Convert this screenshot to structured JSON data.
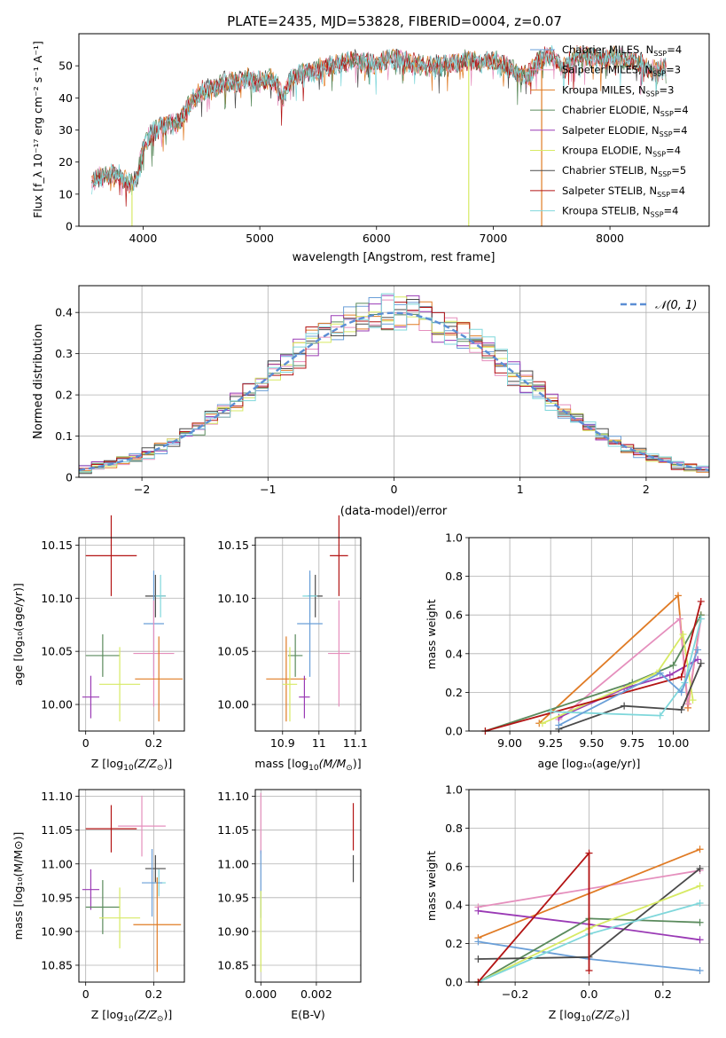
{
  "figure": {
    "title": "PLATE=2435, MJD=53828, FIBERID=0004, z=0.07"
  },
  "colors": {
    "Chabrier MILES": "#6a9fd8",
    "Salpeter MILES": "#e58fbd",
    "Kroupa MILES": "#e07b25",
    "Chabrier ELODIE": "#5a8a5c",
    "Salpeter ELODIE": "#9a3ab5",
    "Kroupa ELODIE": "#d7ea64",
    "Chabrier STELIB": "#4a4a4a",
    "Salpeter STELIB": "#b31414",
    "Kroupa STELIB": "#7fd7db"
  },
  "chart_data": [
    {
      "id": "spectrum",
      "type": "line",
      "xlabel": "wavelength [Angstrom, rest frame]",
      "ylabel": "Flux [f_λ 10⁻¹⁷ erg cm⁻² s⁻¹ A⁻¹]",
      "xlim": [
        3450,
        8850
      ],
      "ylim": [
        0,
        60
      ],
      "xticks": [
        4000,
        5000,
        6000,
        7000,
        8000
      ],
      "yticks": [
        0,
        10,
        20,
        30,
        40,
        50
      ],
      "legend_position": "top-right",
      "legend": [
        {
          "name": "Chabrier MILES",
          "label_main": "Chabrier MILES, N",
          "label_sub": "SSP",
          "label_tail": "=4"
        },
        {
          "name": "Salpeter MILES",
          "label_main": "Salpeter MILES, N",
          "label_sub": "SSP",
          "label_tail": "=3"
        },
        {
          "name": "Kroupa MILES",
          "label_main": "Kroupa MILES, N",
          "label_sub": "SSP",
          "label_tail": "=3"
        },
        {
          "name": "Chabrier ELODIE",
          "label_main": "Chabrier ELODIE, N",
          "label_sub": "SSP",
          "label_tail": "=4"
        },
        {
          "name": "Salpeter ELODIE",
          "label_main": "Salpeter ELODIE, N",
          "label_sub": "SSP",
          "label_tail": "=4"
        },
        {
          "name": "Kroupa ELODIE",
          "label_main": "Kroupa ELODIE, N",
          "label_sub": "SSP",
          "label_tail": "=4"
        },
        {
          "name": "Chabrier STELIB",
          "label_main": "Chabrier STELIB, N",
          "label_sub": "SSP",
          "label_tail": "=5"
        },
        {
          "name": "Salpeter STELIB",
          "label_main": "Salpeter STELIB, N",
          "label_sub": "SSP",
          "label_tail": "=4"
        },
        {
          "name": "Kroupa STELIB",
          "label_main": "Kroupa STELIB, N",
          "label_sub": "SSP",
          "label_tail": "=4"
        }
      ],
      "continuum": [
        [
          3560,
          13
        ],
        [
          3600,
          15
        ],
        [
          3700,
          16
        ],
        [
          3800,
          16
        ],
        [
          3850,
          14
        ],
        [
          3900,
          13
        ],
        [
          3950,
          15
        ],
        [
          4000,
          24
        ],
        [
          4050,
          28
        ],
        [
          4100,
          30
        ],
        [
          4200,
          32
        ],
        [
          4300,
          32
        ],
        [
          4400,
          38
        ],
        [
          4500,
          42
        ],
        [
          4600,
          43
        ],
        [
          4700,
          45
        ],
        [
          4800,
          45
        ],
        [
          4900,
          46
        ],
        [
          5000,
          45
        ],
        [
          5100,
          46
        ],
        [
          5150,
          44
        ],
        [
          5200,
          40
        ],
        [
          5250,
          45
        ],
        [
          5300,
          47
        ],
        [
          5400,
          48
        ],
        [
          5500,
          49
        ],
        [
          5600,
          50
        ],
        [
          5700,
          51
        ],
        [
          5800,
          52
        ],
        [
          5900,
          51
        ],
        [
          6000,
          50
        ],
        [
          6100,
          52
        ],
        [
          6200,
          52
        ],
        [
          6300,
          51
        ],
        [
          6400,
          50
        ],
        [
          6500,
          50
        ],
        [
          6600,
          50
        ],
        [
          6700,
          51
        ],
        [
          6800,
          52
        ],
        [
          6900,
          51
        ],
        [
          7000,
          52
        ],
        [
          7100,
          50
        ],
        [
          7200,
          48
        ],
        [
          7300,
          47
        ],
        [
          7400,
          52
        ],
        [
          7500,
          53
        ],
        [
          7600,
          49
        ],
        [
          7700,
          53
        ],
        [
          7800,
          53
        ],
        [
          7900,
          52
        ],
        [
          8000,
          53
        ],
        [
          8100,
          52
        ],
        [
          8200,
          51
        ],
        [
          8300,
          50
        ],
        [
          8400,
          48
        ],
        [
          8480,
          50
        ]
      ],
      "spikes": [
        {
          "name": "Kroupa ELODIE",
          "x": 3905,
          "y": 0
        },
        {
          "name": "Kroupa ELODIE",
          "x": 6790,
          "y": 0
        },
        {
          "name": "Kroupa MILES",
          "x": 7415,
          "y": 0
        }
      ]
    },
    {
      "id": "residual-histogram",
      "type": "line",
      "xlabel": "(data-model)/error",
      "ylabel": "Normed distribution",
      "xlim": [
        -2.5,
        2.5
      ],
      "ylim": [
        0,
        0.465
      ],
      "xticks": [
        -2,
        -1,
        0,
        1,
        2
      ],
      "yticks": [
        0.0,
        0.1,
        0.2,
        0.3,
        0.4
      ],
      "grid": true,
      "bins": {
        "start": -2.5,
        "width": 0.1,
        "count": 50
      },
      "reference": {
        "name": "𝒩(0, 1)",
        "style": "dashed",
        "color": "#5b8ed4"
      },
      "legend_position": "top-right"
    },
    {
      "id": "age-vs-Z",
      "type": "scatter",
      "xlabel_main": "Z [log",
      "xlabel_sub": "10",
      "xlabel_tail": "(Z/Z",
      "xlabel_sym": "⊙",
      "xlabel_end": ")]",
      "ylabel": "age  [log₁₀(age/yr)]",
      "xlim": [
        -0.02,
        0.29
      ],
      "ylim": [
        9.975,
        10.157
      ],
      "xticks": [
        0.0,
        0.2
      ],
      "yticks": [
        10.0,
        10.05,
        10.1,
        10.15
      ],
      "grid": true,
      "points": [
        {
          "name": "Salpeter STELIB",
          "x": 0.075,
          "xerr": 0.075,
          "y": 10.14,
          "yerr": 0.038
        },
        {
          "name": "Chabrier STELIB",
          "x": 0.205,
          "xerr": 0.03,
          "y": 10.102,
          "yerr": 0.02
        },
        {
          "name": "Kroupa STELIB",
          "x": 0.22,
          "xerr": 0.015,
          "y": 10.102,
          "yerr": 0.02
        },
        {
          "name": "Chabrier MILES",
          "x": 0.2,
          "xerr": 0.03,
          "y": 10.076,
          "yerr": 0.05
        },
        {
          "name": "Salpeter MILES",
          "x": 0.2,
          "xerr": 0.06,
          "y": 10.048,
          "yerr": 0.05
        },
        {
          "name": "Chabrier ELODIE",
          "x": 0.05,
          "xerr": 0.05,
          "y": 10.046,
          "yerr": 0.02
        },
        {
          "name": "Kroupa MILES",
          "x": 0.215,
          "xerr": 0.07,
          "y": 10.024,
          "yerr": 0.04
        },
        {
          "name": "Kroupa ELODIE",
          "x": 0.1,
          "xerr": 0.06,
          "y": 10.019,
          "yerr": 0.035
        },
        {
          "name": "Salpeter ELODIE",
          "x": 0.015,
          "xerr": 0.025,
          "y": 10.007,
          "yerr": 0.02
        }
      ]
    },
    {
      "id": "age-vs-mass",
      "type": "scatter",
      "xlabel_main": "mass [log",
      "xlabel_sub": "10",
      "xlabel_tail": "(M/M",
      "xlabel_sym": "⊙",
      "xlabel_end": ")]",
      "xlim": [
        10.825,
        11.115
      ],
      "ylim": [
        9.975,
        10.157
      ],
      "xticks": [
        10.9,
        11.0,
        11.1
      ],
      "yticks": [
        10.0,
        10.05,
        10.1,
        10.15
      ],
      "grid": true,
      "points": [
        {
          "name": "Salpeter STELIB",
          "x": 11.055,
          "xerr": 0.025,
          "y": 10.14,
          "yerr": 0.038
        },
        {
          "name": "Chabrier STELIB",
          "x": 10.99,
          "xerr": 0.02,
          "y": 10.102,
          "yerr": 0.02
        },
        {
          "name": "Kroupa STELIB",
          "x": 10.975,
          "xerr": 0.02,
          "y": 10.102,
          "yerr": 0.02
        },
        {
          "name": "Chabrier MILES",
          "x": 10.975,
          "xerr": 0.035,
          "y": 10.076,
          "yerr": 0.05
        },
        {
          "name": "Salpeter MILES",
          "x": 11.055,
          "xerr": 0.03,
          "y": 10.048,
          "yerr": 0.05
        },
        {
          "name": "Chabrier ELODIE",
          "x": 10.935,
          "xerr": 0.02,
          "y": 10.046,
          "yerr": 0.02
        },
        {
          "name": "Kroupa MILES",
          "x": 10.91,
          "xerr": 0.055,
          "y": 10.024,
          "yerr": 0.04
        },
        {
          "name": "Kroupa ELODIE",
          "x": 10.92,
          "xerr": 0.02,
          "y": 10.019,
          "yerr": 0.035
        },
        {
          "name": "Salpeter ELODIE",
          "x": 10.96,
          "xerr": 0.015,
          "y": 10.007,
          "yerr": 0.02
        }
      ]
    },
    {
      "id": "weight-vs-age",
      "type": "line",
      "xlabel": "age  [log₁₀(age/yr)]",
      "ylabel": "mass weight",
      "xlim": [
        8.75,
        10.22
      ],
      "ylim": [
        0,
        1
      ],
      "xticks": [
        9.0,
        9.25,
        9.5,
        9.75,
        10.0
      ],
      "xticklabels": [
        "9.00",
        "9.25",
        "9.50",
        "9.75",
        "10.00"
      ],
      "yticks": [
        0.0,
        0.2,
        0.4,
        0.6,
        0.8,
        1.0
      ],
      "grid": true,
      "series": [
        {
          "name": "Kroupa MILES",
          "points": [
            [
              9.18,
              0.04
            ],
            [
              10.03,
              0.7
            ],
            [
              10.09,
              0.12
            ],
            [
              10.17,
              0.6
            ]
          ]
        },
        {
          "name": "Salpeter MILES",
          "points": [
            [
              9.3,
              0.06
            ],
            [
              10.04,
              0.58
            ],
            [
              10.09,
              0.14
            ],
            [
              10.17,
              0.58
            ]
          ]
        },
        {
          "name": "Chabrier ELODIE",
          "points": [
            [
              8.85,
              0.0
            ],
            [
              9.75,
              0.25
            ],
            [
              10.0,
              0.34
            ],
            [
              10.17,
              0.6
            ]
          ]
        },
        {
          "name": "Salpeter ELODIE",
          "points": [
            [
              9.3,
              0.07
            ],
            [
              9.7,
              0.22
            ],
            [
              9.98,
              0.29
            ],
            [
              10.15,
              0.37
            ]
          ]
        },
        {
          "name": "Kroupa ELODIE",
          "points": [
            [
              9.2,
              0.04
            ],
            [
              9.9,
              0.3
            ],
            [
              10.06,
              0.5
            ],
            [
              10.12,
              0.16
            ]
          ]
        },
        {
          "name": "Chabrier STELIB",
          "points": [
            [
              9.3,
              0.01
            ],
            [
              9.7,
              0.13
            ],
            [
              10.05,
              0.11
            ],
            [
              10.17,
              0.35
            ]
          ]
        },
        {
          "name": "Salpeter STELIB",
          "points": [
            [
              8.85,
              0.0
            ],
            [
              10.05,
              0.28
            ],
            [
              10.17,
              0.67
            ]
          ]
        },
        {
          "name": "Kroupa STELIB",
          "points": [
            [
              9.25,
              0.1
            ],
            [
              9.92,
              0.08
            ],
            [
              10.07,
              0.25
            ],
            [
              10.17,
              0.58
            ]
          ]
        },
        {
          "name": "Chabrier MILES",
          "points": [
            [
              9.3,
              0.03
            ],
            [
              9.92,
              0.3
            ],
            [
              10.05,
              0.2
            ],
            [
              10.15,
              0.42
            ]
          ]
        }
      ]
    },
    {
      "id": "mass-vs-Z",
      "type": "scatter",
      "xlabel_main": "Z [log",
      "xlabel_sub": "10",
      "xlabel_tail": "(Z/Z",
      "xlabel_sym": "⊙",
      "xlabel_end": ")]",
      "ylabel": "mass [log₁₀(M/M⊙)]",
      "xlim": [
        -0.02,
        0.29
      ],
      "ylim": [
        10.825,
        11.11
      ],
      "xticks": [
        0.0,
        0.2
      ],
      "yticks": [
        10.85,
        10.9,
        10.95,
        11.0,
        11.05,
        11.1
      ],
      "grid": true,
      "points": [
        {
          "name": "Salpeter STELIB",
          "x": 0.075,
          "xerr": 0.075,
          "y": 11.052,
          "yerr": 0.035
        },
        {
          "name": "Salpeter MILES",
          "x": 0.165,
          "xerr": 0.07,
          "y": 11.056,
          "yerr": 0.045
        },
        {
          "name": "Chabrier STELIB",
          "x": 0.205,
          "xerr": 0.03,
          "y": 10.993,
          "yerr": 0.02
        },
        {
          "name": "Kroupa STELIB",
          "x": 0.215,
          "xerr": 0.02,
          "y": 10.972,
          "yerr": 0.02
        },
        {
          "name": "Chabrier MILES",
          "x": 0.195,
          "xerr": 0.03,
          "y": 10.972,
          "yerr": 0.05
        },
        {
          "name": "Salpeter ELODIE",
          "x": 0.015,
          "xerr": 0.025,
          "y": 10.962,
          "yerr": 0.03
        },
        {
          "name": "Chabrier ELODIE",
          "x": 0.05,
          "xerr": 0.05,
          "y": 10.936,
          "yerr": 0.04
        },
        {
          "name": "Kroupa ELODIE",
          "x": 0.1,
          "xerr": 0.06,
          "y": 10.92,
          "yerr": 0.045
        },
        {
          "name": "Kroupa MILES",
          "x": 0.21,
          "xerr": 0.07,
          "y": 10.91,
          "yerr": 0.07
        }
      ]
    },
    {
      "id": "mass-vs-EBV",
      "type": "scatter",
      "xlabel": "E(B-V)",
      "xlim": [
        -0.0002,
        0.0036
      ],
      "ylim": [
        10.825,
        11.11
      ],
      "xticks": [
        0.0,
        0.002
      ],
      "xticklabels": [
        "0.000",
        "0.002"
      ],
      "yticks": [
        10.85,
        10.9,
        10.95,
        11.0,
        11.05,
        11.1
      ],
      "grid": true,
      "points": [
        {
          "name": "Salpeter MILES",
          "x": 0.0,
          "y": 11.06,
          "yerr": 0.045
        },
        {
          "name": "Chabrier MILES",
          "x": 0.0,
          "y": 10.97,
          "yerr": 0.05
        },
        {
          "name": "Kroupa ELODIE",
          "x": 0.0,
          "y": 10.9,
          "yerr": 0.06
        },
        {
          "name": "Salpeter STELIB",
          "x": 0.00333,
          "y": 11.055,
          "yerr": 0.035
        },
        {
          "name": "Chabrier STELIB",
          "x": 0.00333,
          "y": 10.993,
          "yerr": 0.02
        }
      ]
    },
    {
      "id": "weight-vs-Z",
      "type": "line",
      "xlabel_main": "Z [log",
      "xlabel_sub": "10",
      "xlabel_tail": "(Z/Z",
      "xlabel_sym": "⊙",
      "xlabel_end": ")]",
      "ylabel": "mass weight",
      "xlim": [
        -0.325,
        0.325
      ],
      "ylim": [
        0,
        1
      ],
      "xticks": [
        -0.2,
        0.0,
        0.2
      ],
      "xticklabels": [
        "−0.2",
        "0.0",
        "0.2"
      ],
      "yticks": [
        0.0,
        0.2,
        0.4,
        0.6,
        0.8,
        1.0
      ],
      "grid": true,
      "series": [
        {
          "name": "Salpeter MILES",
          "points": [
            [
              -0.3,
              0.39
            ],
            [
              0.3,
              0.58
            ]
          ]
        },
        {
          "name": "Kroupa MILES",
          "points": [
            [
              -0.3,
              0.23
            ],
            [
              0.3,
              0.69
            ]
          ]
        },
        {
          "name": "Salpeter ELODIE",
          "points": [
            [
              -0.3,
              0.37
            ],
            [
              0.0,
              0.3
            ],
            [
              0.3,
              0.22
            ]
          ]
        },
        {
          "name": "Chabrier MILES",
          "points": [
            [
              -0.3,
              0.21
            ],
            [
              0.0,
              0.12
            ],
            [
              0.3,
              0.06
            ]
          ]
        },
        {
          "name": "Chabrier ELODIE",
          "points": [
            [
              -0.3,
              0.0
            ],
            [
              0.0,
              0.33
            ],
            [
              0.3,
              0.31
            ]
          ]
        },
        {
          "name": "Chabrier STELIB",
          "points": [
            [
              -0.3,
              0.12
            ],
            [
              0.0,
              0.13
            ],
            [
              0.3,
              0.59
            ]
          ]
        },
        {
          "name": "Kroupa ELODIE",
          "points": [
            [
              -0.3,
              0.0
            ],
            [
              0.0,
              0.28
            ],
            [
              0.3,
              0.5
            ]
          ]
        },
        {
          "name": "Kroupa STELIB",
          "points": [
            [
              -0.3,
              0.0
            ],
            [
              0.0,
              0.25
            ],
            [
              0.3,
              0.41
            ]
          ]
        },
        {
          "name": "Salpeter STELIB",
          "points": [
            [
              -0.3,
              0.0
            ],
            [
              0.0,
              0.67
            ],
            [
              0.0,
              0.06
            ]
          ]
        }
      ]
    }
  ]
}
